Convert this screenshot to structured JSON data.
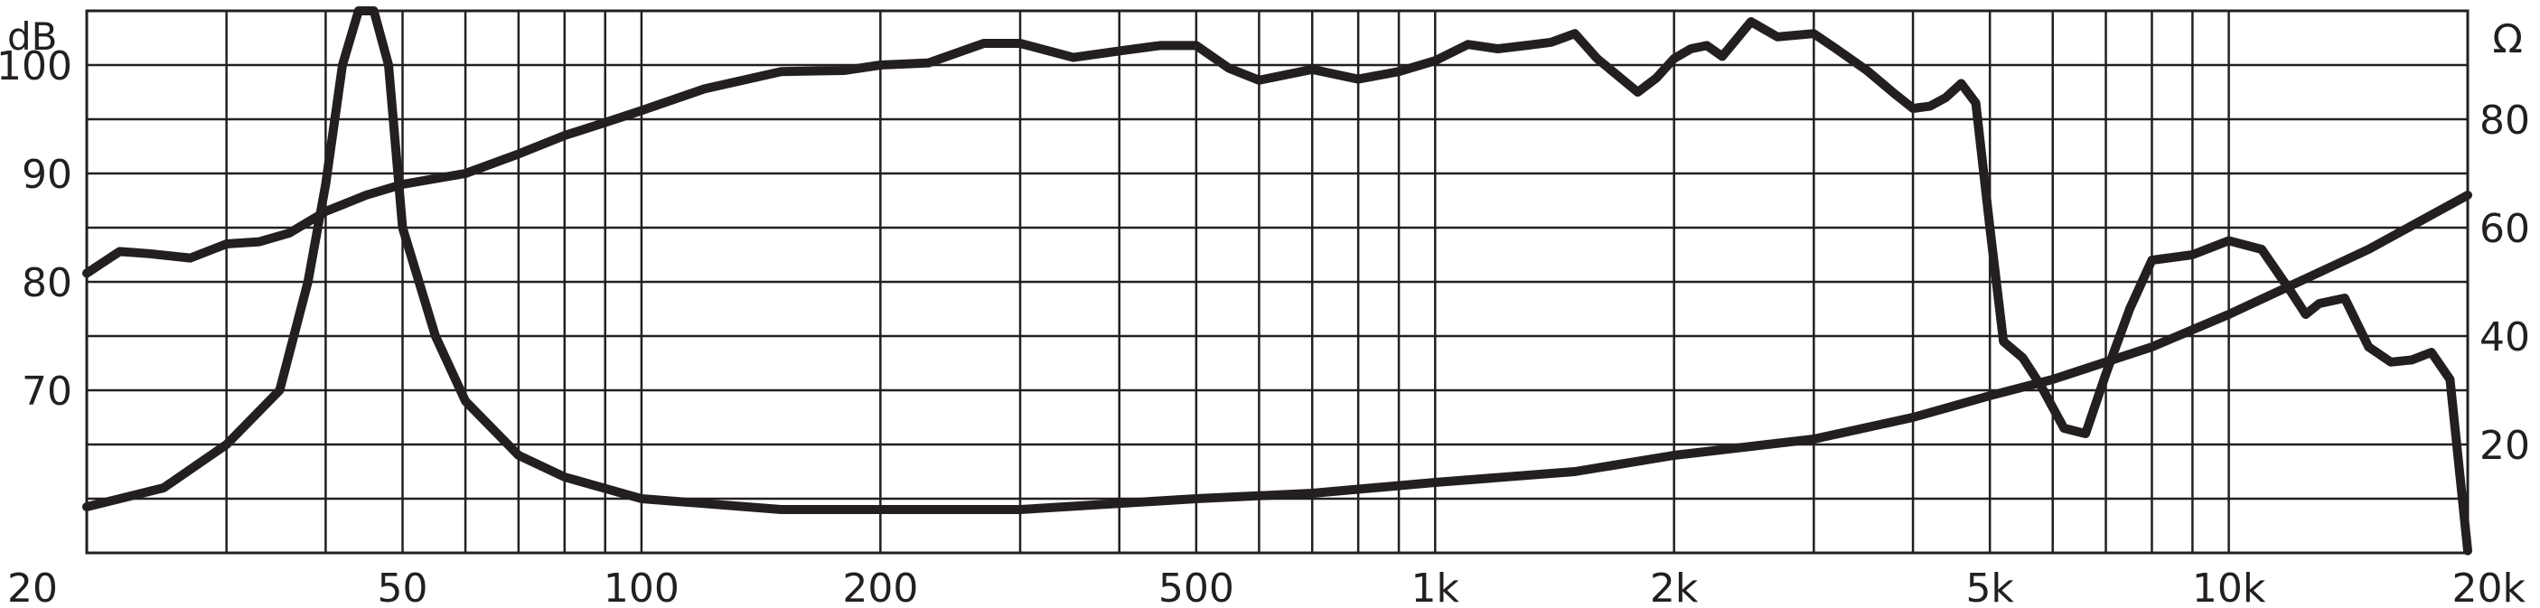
{
  "chart_data": {
    "type": "line",
    "x_scale": "log",
    "xlim": [
      20,
      20000
    ],
    "x_ticks": [
      {
        "value": 20,
        "label": "20"
      },
      {
        "value": 50,
        "label": "50"
      },
      {
        "value": 100,
        "label": "100"
      },
      {
        "value": 200,
        "label": "200"
      },
      {
        "value": 500,
        "label": "500"
      },
      {
        "value": 1000,
        "label": "1k"
      },
      {
        "value": 2000,
        "label": "2k"
      },
      {
        "value": 5000,
        "label": "5k"
      },
      {
        "value": 10000,
        "label": "10k"
      },
      {
        "value": 20000,
        "label": "20k"
      }
    ],
    "left_axis": {
      "unit_label": "dB",
      "ylim": [
        55,
        105
      ],
      "ticks": [
        {
          "value": 100,
          "label": "100"
        },
        {
          "value": 90,
          "label": "90"
        },
        {
          "value": 80,
          "label": "80"
        },
        {
          "value": 70,
          "label": "70"
        }
      ]
    },
    "right_axis": {
      "unit_label": "Ω",
      "ylim": [
        0,
        100
      ],
      "ticks": [
        {
          "value": 80,
          "label": "80"
        },
        {
          "value": 60,
          "label": "60"
        },
        {
          "value": 40,
          "label": "40"
        },
        {
          "value": 20,
          "label": "20"
        }
      ]
    },
    "grid": true,
    "color": "#231f20",
    "series": [
      {
        "axis": "left",
        "x": [
          20,
          22,
          24,
          27,
          30,
          33,
          36,
          40,
          45,
          50,
          60,
          70,
          80,
          90,
          100,
          120,
          150,
          180,
          200,
          230,
          270,
          300,
          350,
          400,
          450,
          500,
          550,
          600,
          700,
          800,
          900,
          1000,
          1100,
          1200,
          1300,
          1400,
          1500,
          1600,
          1800,
          1900,
          2000,
          2100,
          2200,
          2300,
          2500,
          2700,
          3000,
          3200,
          3500,
          3800,
          4000,
          4200,
          4400,
          4600,
          4800,
          5000,
          5200,
          5500,
          5800,
          6200,
          6600,
          7000,
          7500,
          8000,
          9000,
          10000,
          11000,
          12000,
          12500,
          13000,
          14000,
          15000,
          16000,
          17000,
          18000,
          19000,
          20000
        ],
        "y": [
          80.8,
          82.8,
          82.6,
          82.2,
          83.5,
          83.7,
          84.5,
          86.5,
          88.0,
          89.0,
          90.0,
          91.8,
          93.5,
          94.7,
          95.8,
          97.8,
          99.4,
          99.5,
          100.0,
          100.2,
          102.0,
          102.0,
          100.7,
          101.3,
          101.8,
          101.8,
          99.7,
          98.6,
          99.6,
          98.7,
          99.4,
          100.4,
          101.9,
          101.5,
          101.8,
          102.1,
          102.9,
          100.6,
          97.5,
          98.8,
          100.6,
          101.5,
          101.8,
          100.8,
          104.0,
          102.6,
          102.9,
          101.5,
          99.5,
          97.3,
          96.0,
          96.2,
          97.0,
          98.3,
          96.5,
          85.0,
          74.5,
          73.0,
          70.4,
          66.5,
          66.0,
          71.5,
          77.5,
          82.0,
          82.5,
          83.8,
          83.0,
          79.0,
          77.0,
          78.0,
          78.5,
          74.0,
          72.6,
          72.8,
          73.5,
          71.0,
          55.2
        ]
      },
      {
        "axis": "right",
        "x": [
          20,
          25,
          30,
          35,
          38,
          40,
          42,
          44,
          46,
          48,
          50,
          55,
          60,
          70,
          80,
          100,
          150,
          200,
          300,
          500,
          700,
          1000,
          1500,
          2000,
          3000,
          4000,
          5000,
          6000,
          8000,
          10000,
          15000,
          20000
        ],
        "y": [
          8.5,
          12,
          20,
          30,
          50,
          68,
          90,
          100,
          100,
          90,
          60,
          40,
          28,
          18,
          14,
          10,
          8,
          8,
          8,
          10,
          11,
          13,
          15,
          18,
          21,
          25,
          29,
          32,
          38,
          44,
          56,
          66
        ]
      }
    ]
  }
}
